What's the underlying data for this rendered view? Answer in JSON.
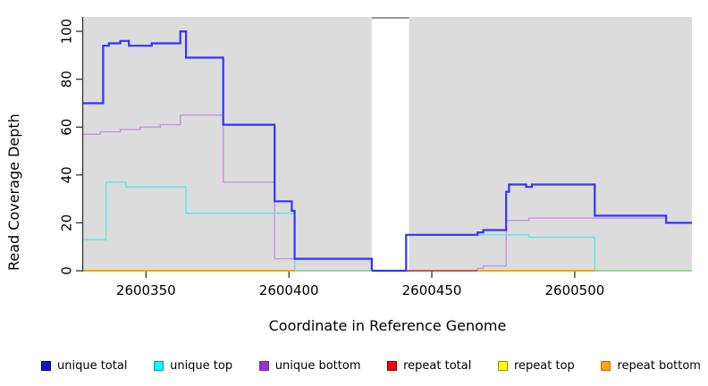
{
  "chart_data": {
    "type": "line",
    "subtype": "step-coverage",
    "title": "",
    "xlabel": "Coordinate in Reference Genome",
    "ylabel": "Read Coverage Depth",
    "xlim": [
      2600328,
      2600541
    ],
    "ylim": [
      0,
      106
    ],
    "x_ticks": [
      2600350,
      2600400,
      2600450,
      2600500
    ],
    "y_ticks": [
      0,
      20,
      40,
      60,
      80,
      100
    ],
    "grid": false,
    "legend_position": "bottom",
    "plot_bg": "#DCDCDC",
    "axis_color": "#333333",
    "masked_region": {
      "x_start": 2600429,
      "x_end": 2600442,
      "color": "#FFFFFF",
      "top_border": "#999999"
    },
    "series": [
      {
        "name": "unique total",
        "color": "#3333FF",
        "legend_fill": "#1111CC",
        "legend_border": "#000088",
        "width": 2.2,
        "steps": [
          [
            2600328,
            70
          ],
          [
            2600335,
            94
          ],
          [
            2600337,
            95
          ],
          [
            2600341,
            96
          ],
          [
            2600344,
            94
          ],
          [
            2600352,
            95
          ],
          [
            2600362,
            100
          ],
          [
            2600364,
            89
          ],
          [
            2600377,
            61
          ],
          [
            2600395,
            29
          ],
          [
            2600401,
            25
          ],
          [
            2600402,
            5
          ],
          [
            2600429,
            0
          ],
          [
            2600441,
            15
          ],
          [
            2600466,
            16
          ],
          [
            2600468,
            17
          ],
          [
            2600476,
            33
          ],
          [
            2600477,
            36
          ],
          [
            2600483,
            35
          ],
          [
            2600485,
            36
          ],
          [
            2600507,
            23
          ],
          [
            2600532,
            20
          ]
        ]
      },
      {
        "name": "unique top",
        "color": "#5FE6E6",
        "legend_fill": "#00FFFF",
        "legend_border": "#009999",
        "width": 1.4,
        "steps": [
          [
            2600328,
            13
          ],
          [
            2600336,
            37
          ],
          [
            2600343,
            35
          ],
          [
            2600364,
            24
          ],
          [
            2600402,
            0
          ],
          [
            2600441,
            15
          ],
          [
            2600484,
            14
          ],
          [
            2600507,
            0
          ]
        ]
      },
      {
        "name": "unique bottom",
        "color": "#C492E6",
        "legend_fill": "#9932CC",
        "legend_border": "#7B24A8",
        "width": 1.4,
        "steps": [
          [
            2600328,
            57
          ],
          [
            2600334,
            58
          ],
          [
            2600341,
            59
          ],
          [
            2600348,
            60
          ],
          [
            2600355,
            61
          ],
          [
            2600362,
            65
          ],
          [
            2600377,
            37
          ],
          [
            2600395,
            5
          ],
          [
            2600402,
            0
          ],
          [
            2600466,
            1
          ],
          [
            2600468,
            2
          ],
          [
            2600476,
            21
          ],
          [
            2600484,
            22
          ],
          [
            2600532,
            20
          ]
        ]
      },
      {
        "name": "repeat total",
        "color": "#C23B44",
        "legend_fill": "#FF0000",
        "legend_border": "#8B0000",
        "width": 1.5,
        "steps": [
          [
            2600328,
            0
          ]
        ]
      },
      {
        "name": "repeat top",
        "color": "#F5F500",
        "legend_fill": "#FFFF00",
        "legend_border": "#909000",
        "width": 1.5,
        "steps": [
          [
            2600328,
            0
          ]
        ]
      },
      {
        "name": "repeat bottom",
        "color": "#FFA500",
        "legend_fill": "#FFA500",
        "legend_border": "#B87400",
        "width": 1.6,
        "steps": [
          [
            2600328,
            0
          ]
        ]
      }
    ],
    "baseline_segments": [
      {
        "x1": 2600328,
        "x2": 2600402,
        "color": "#FFA500"
      },
      {
        "x1": 2600402,
        "x2": 2600429,
        "color": "#96D996"
      },
      {
        "x1": 2600441,
        "x2": 2600466,
        "color": "#C23B44"
      },
      {
        "x1": 2600466,
        "x2": 2600507,
        "color": "#FFA500"
      },
      {
        "x1": 2600507,
        "x2": 2600541,
        "color": "#96D996"
      }
    ]
  }
}
